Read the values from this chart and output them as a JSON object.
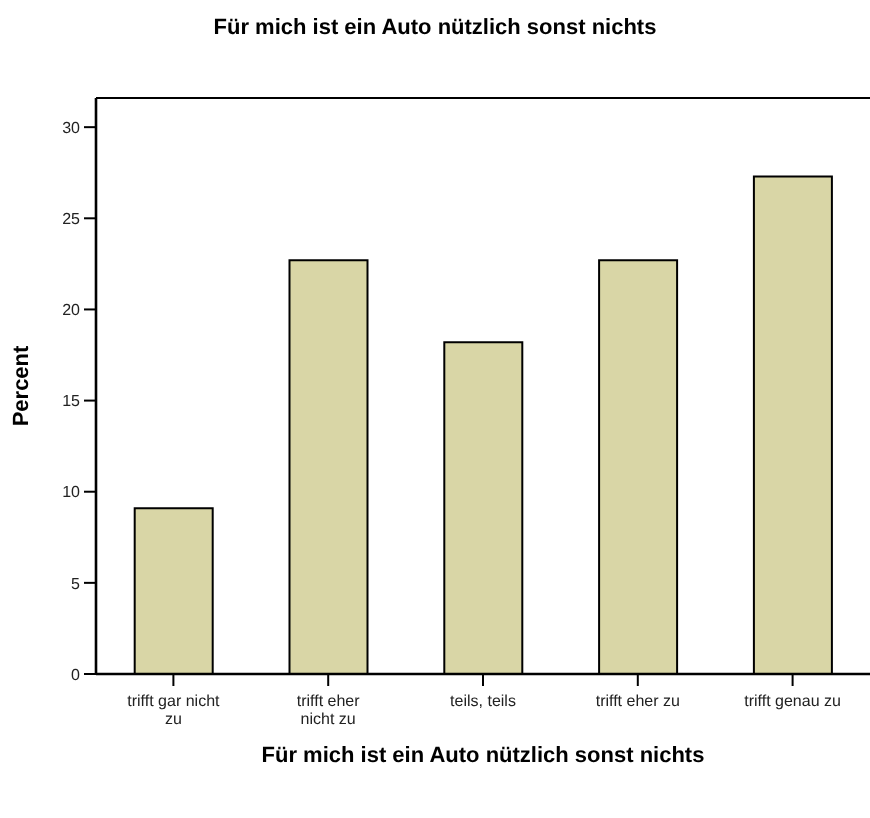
{
  "chart_data": {
    "type": "bar",
    "title": "Für mich ist ein Auto nützlich sonst nichts",
    "xlabel": "Für mich ist ein Auto nützlich sonst nichts",
    "ylabel": "Percent",
    "categories": [
      "trifft gar nicht zu",
      "trifft eher nicht zu",
      "teils, teils",
      "trifft eher zu",
      "trifft genau zu"
    ],
    "values": [
      9.1,
      22.7,
      18.2,
      22.7,
      27.3
    ],
    "color": "#d9d6a6",
    "ylim": [
      0,
      31.6
    ],
    "yticks": [
      0,
      5,
      10,
      15,
      20,
      25,
      30
    ],
    "grid": false,
    "legend": false
  }
}
